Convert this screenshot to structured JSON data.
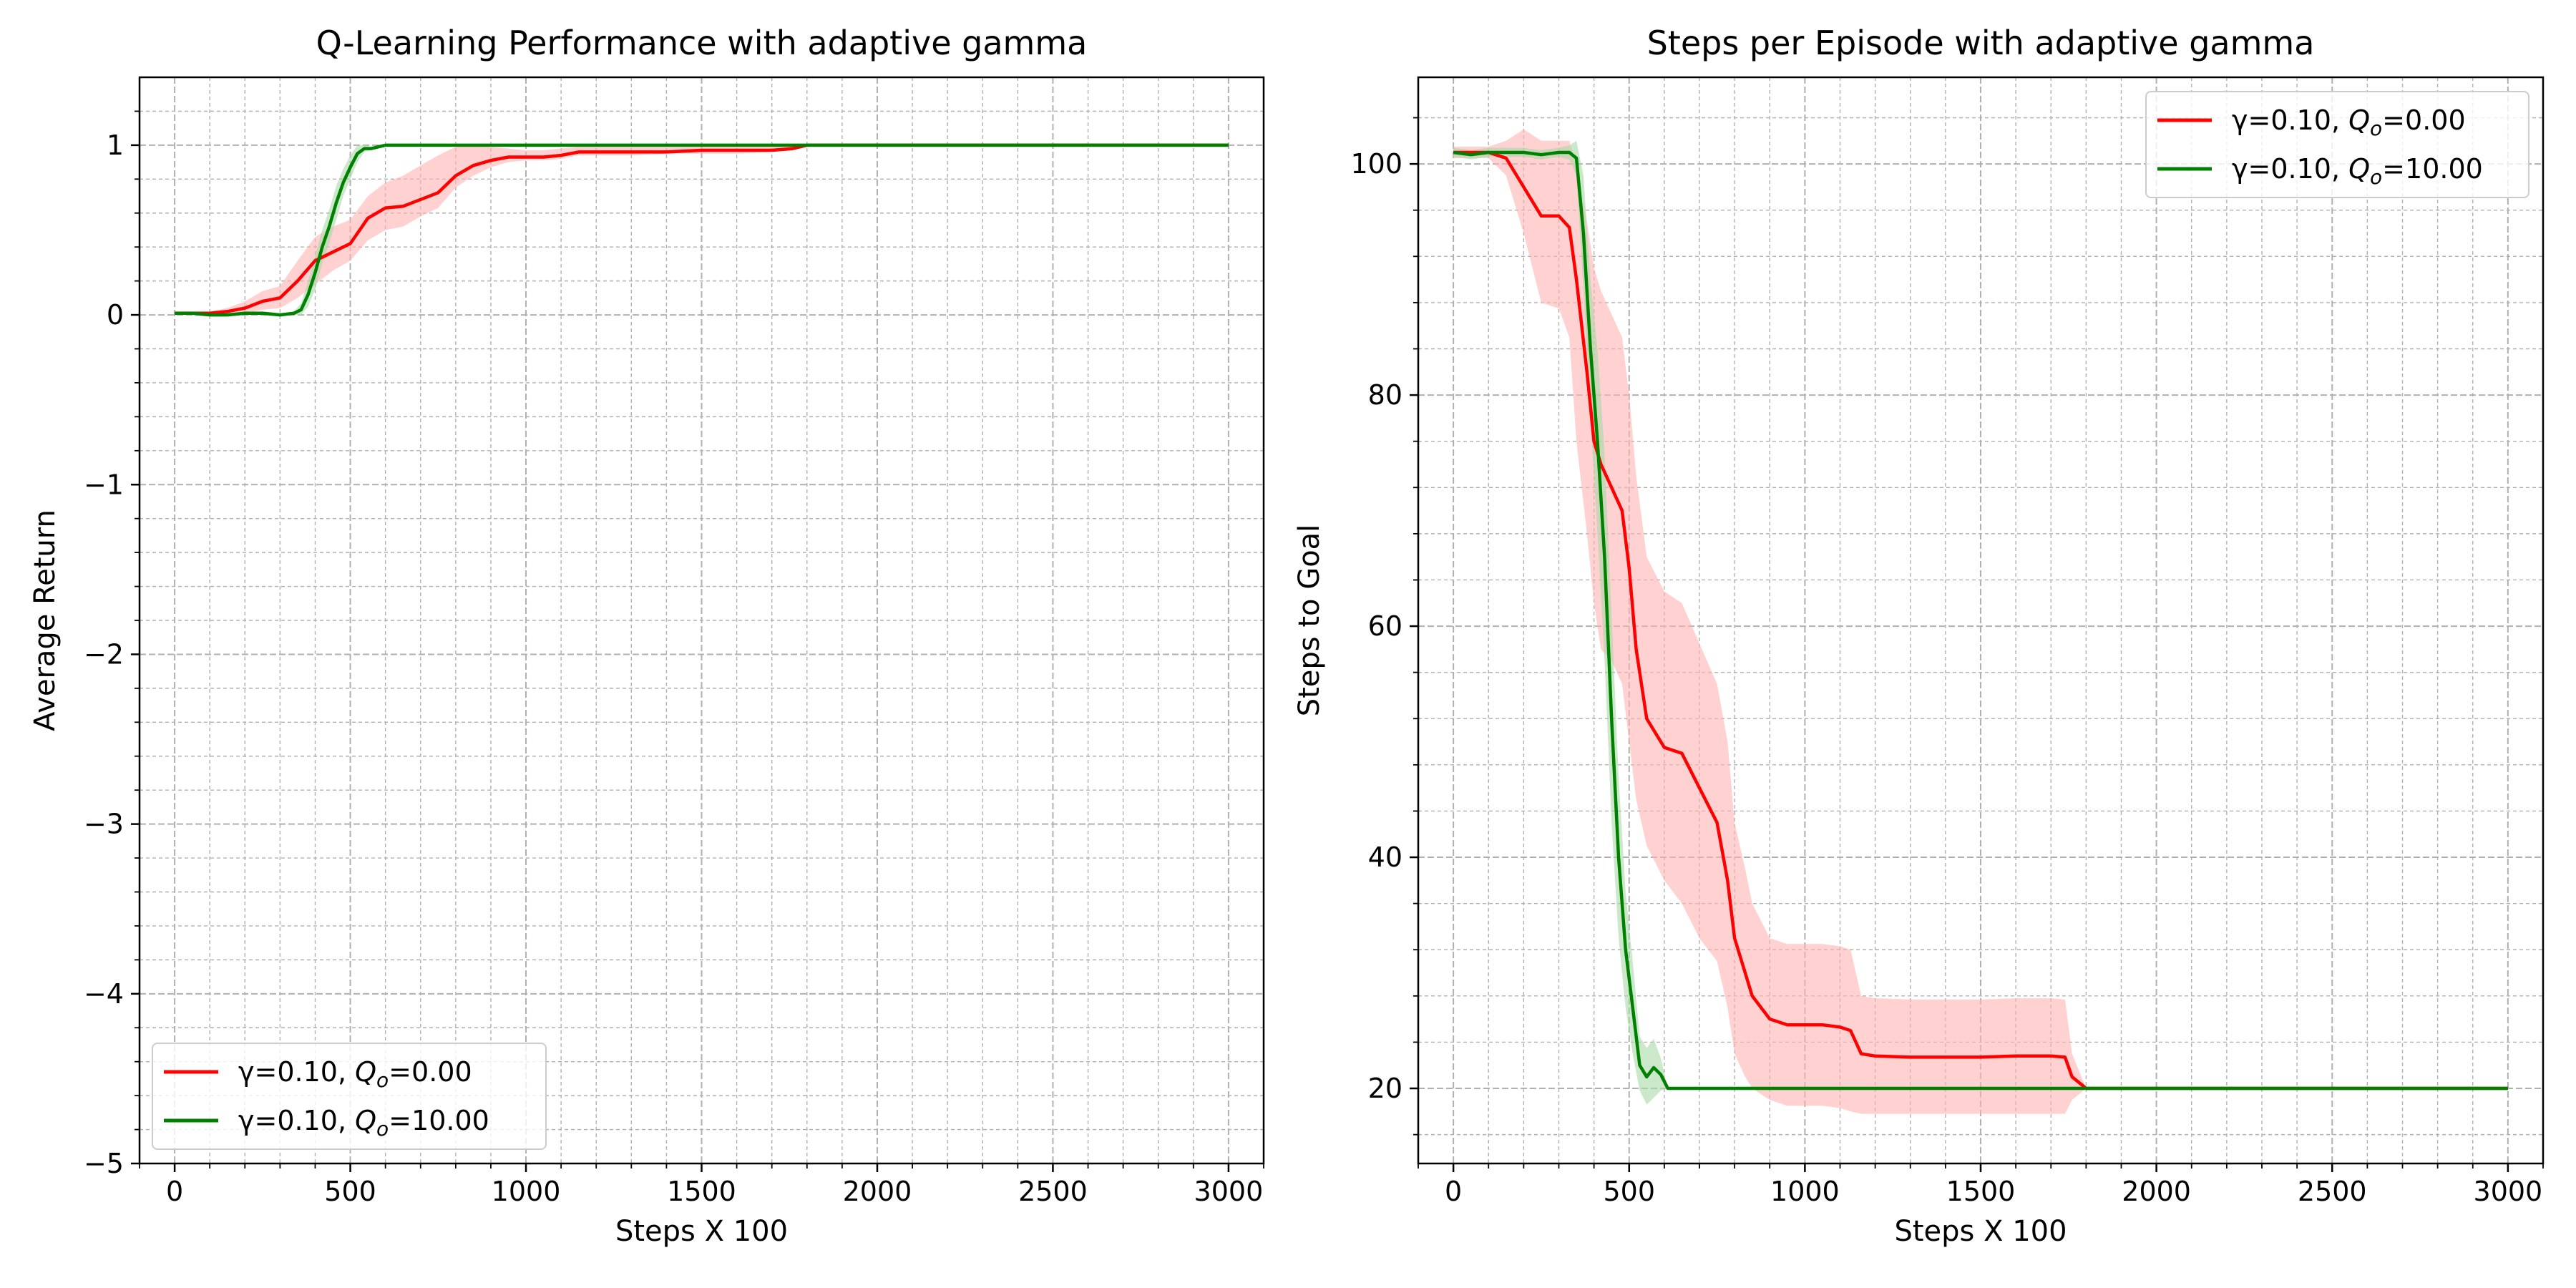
{
  "chart_data": [
    {
      "type": "line",
      "title": "Q-Learning Performance with adaptive gamma",
      "xlabel": "Steps X 100",
      "ylabel": "Average Return",
      "xlim": [
        -100,
        3100
      ],
      "ylim": [
        -5,
        1.4
      ],
      "xticks": [
        0,
        500,
        1000,
        1500,
        2000,
        2500,
        3000
      ],
      "xtick_labels": [
        "0",
        "500",
        "1000",
        "1500",
        "2000",
        "2500",
        "3000"
      ],
      "yticks": [
        1,
        0,
        -1,
        -2,
        -3,
        -4,
        -5
      ],
      "ytick_labels": [
        "1",
        "0",
        "−1",
        "−2",
        "−3",
        "−4",
        "−5"
      ],
      "grid": true,
      "minor_grid": true,
      "legend_position": "lower-left",
      "series": [
        {
          "name": "γ=0.10, Q_o=0.00",
          "legend_prefix": "γ=0.10, ",
          "legend_q": "Q",
          "legend_sub": "o",
          "legend_value": "=0.00",
          "color": "#ff0000",
          "band_color": "#ffb3b3",
          "x": [
            0,
            50,
            100,
            150,
            200,
            250,
            300,
            350,
            400,
            450,
            500,
            550,
            600,
            650,
            700,
            750,
            800,
            850,
            900,
            950,
            1000,
            1050,
            1100,
            1150,
            1200,
            1300,
            1400,
            1500,
            1600,
            1700,
            1760,
            1800,
            2000,
            2500,
            3000
          ],
          "y": [
            0.01,
            0.01,
            0.01,
            0.02,
            0.04,
            0.08,
            0.1,
            0.2,
            0.32,
            0.37,
            0.42,
            0.57,
            0.63,
            0.64,
            0.68,
            0.72,
            0.82,
            0.88,
            0.91,
            0.93,
            0.93,
            0.93,
            0.94,
            0.96,
            0.96,
            0.96,
            0.96,
            0.97,
            0.97,
            0.97,
            0.98,
            1.0,
            1.0,
            1.0,
            1.0
          ],
          "y_low": [
            0.0,
            0.0,
            0.0,
            0.0,
            0.01,
            0.03,
            0.04,
            0.1,
            0.18,
            0.26,
            0.32,
            0.44,
            0.5,
            0.52,
            0.58,
            0.63,
            0.75,
            0.82,
            0.87,
            0.9,
            0.91,
            0.91,
            0.92,
            0.94,
            0.94,
            0.94,
            0.95,
            0.95,
            0.95,
            0.96,
            0.97,
            1.0,
            1.0,
            1.0,
            1.0
          ],
          "y_high": [
            0.02,
            0.02,
            0.02,
            0.04,
            0.08,
            0.14,
            0.17,
            0.32,
            0.46,
            0.52,
            0.56,
            0.7,
            0.78,
            0.82,
            0.88,
            0.94,
            0.99,
            1.0,
            0.99,
            0.98,
            0.97,
            0.97,
            0.98,
            0.99,
            0.99,
            0.99,
            0.99,
            0.99,
            0.99,
            0.99,
            0.99,
            1.0,
            1.0,
            1.0,
            1.0
          ]
        },
        {
          "name": "γ=0.10, Q_o=10.00",
          "legend_prefix": "γ=0.10, ",
          "legend_q": "Q",
          "legend_sub": "o",
          "legend_value": "=10.00",
          "color": "#008000",
          "band_color": "#a8d8a8",
          "x": [
            0,
            50,
            100,
            150,
            200,
            250,
            300,
            340,
            360,
            380,
            400,
            420,
            440,
            460,
            480,
            500,
            520,
            540,
            560,
            580,
            600,
            800,
            1000,
            1500,
            2000,
            2500,
            3000
          ],
          "y": [
            0.01,
            0.01,
            0.0,
            0.0,
            0.01,
            0.01,
            0.0,
            0.01,
            0.03,
            0.12,
            0.25,
            0.4,
            0.52,
            0.66,
            0.78,
            0.87,
            0.95,
            0.98,
            0.98,
            0.99,
            1.0,
            1.0,
            1.0,
            1.0,
            1.0,
            1.0,
            1.0
          ],
          "y_low": [
            0.0,
            0.0,
            0.0,
            0.0,
            0.0,
            0.0,
            0.0,
            0.0,
            0.0,
            0.05,
            0.15,
            0.3,
            0.42,
            0.56,
            0.7,
            0.8,
            0.9,
            0.96,
            0.97,
            0.98,
            1.0,
            1.0,
            1.0,
            1.0,
            1.0,
            1.0,
            1.0
          ],
          "y_high": [
            0.02,
            0.02,
            0.01,
            0.01,
            0.02,
            0.02,
            0.01,
            0.02,
            0.07,
            0.2,
            0.35,
            0.5,
            0.62,
            0.76,
            0.86,
            0.94,
            1.0,
            1.0,
            0.99,
            1.0,
            1.0,
            1.0,
            1.0,
            1.0,
            1.0,
            1.0,
            1.0
          ]
        }
      ]
    },
    {
      "type": "line",
      "title": "Steps per Episode with adaptive gamma",
      "xlabel": "Steps X 100",
      "ylabel": "Steps to Goal",
      "xlim": [
        -100,
        3100
      ],
      "ylim": [
        13.5,
        107.5
      ],
      "xticks": [
        0,
        500,
        1000,
        1500,
        2000,
        2500,
        3000
      ],
      "xtick_labels": [
        "0",
        "500",
        "1000",
        "1500",
        "2000",
        "2500",
        "3000"
      ],
      "yticks": [
        100,
        80,
        60,
        40,
        20
      ],
      "ytick_labels": [
        "100",
        "80",
        "60",
        "40",
        "20"
      ],
      "grid": true,
      "minor_grid": true,
      "legend_position": "top-right",
      "series": [
        {
          "name": "γ=0.10, Q_o=0.00",
          "legend_prefix": "γ=0.10, ",
          "legend_q": "Q",
          "legend_sub": "o",
          "legend_value": "=0.00",
          "color": "#ff0000",
          "band_color": "#ffb3b3",
          "x": [
            0,
            100,
            150,
            200,
            250,
            300,
            330,
            350,
            380,
            400,
            420,
            450,
            480,
            500,
            520,
            550,
            600,
            650,
            700,
            750,
            780,
            800,
            830,
            850,
            900,
            950,
            1000,
            1050,
            1100,
            1130,
            1160,
            1200,
            1300,
            1400,
            1500,
            1600,
            1700,
            1740,
            1760,
            1800,
            2000,
            2500,
            3000
          ],
          "y": [
            101,
            101,
            100.5,
            98,
            95.5,
            95.5,
            94.5,
            90,
            82,
            76,
            74,
            72,
            70,
            65,
            58,
            52,
            49.5,
            49,
            46,
            43,
            38,
            33,
            30,
            28,
            26,
            25.5,
            25.5,
            25.5,
            25.3,
            25,
            23,
            22.8,
            22.7,
            22.7,
            22.7,
            22.8,
            22.8,
            22.7,
            21,
            20,
            20,
            20,
            20
          ],
          "y_low": [
            100.5,
            100.5,
            99,
            94,
            88,
            87.5,
            85,
            76,
            68,
            62,
            58,
            57,
            55,
            50,
            45,
            41,
            38,
            36,
            33,
            31,
            27,
            23,
            21,
            20,
            19,
            18.5,
            18.5,
            18.5,
            18.3,
            18,
            17.8,
            17.8,
            17.8,
            17.8,
            17.8,
            17.8,
            17.8,
            17.8,
            19,
            20,
            20,
            20,
            20
          ],
          "y_high": [
            101.5,
            101.5,
            102,
            103,
            102,
            102,
            102,
            100,
            95,
            91,
            89,
            87,
            85,
            80,
            73,
            66,
            63,
            62,
            58.5,
            55,
            50,
            43,
            39,
            36,
            33,
            32.5,
            32.5,
            32.5,
            32.3,
            32,
            28,
            27.8,
            27.7,
            27.7,
            27.7,
            27.8,
            27.8,
            27.7,
            23,
            20,
            20,
            20,
            20
          ]
        },
        {
          "name": "γ=0.10, Q_o=10.00",
          "legend_prefix": "γ=0.10, ",
          "legend_q": "Q",
          "legend_sub": "o",
          "legend_value": "=10.00",
          "color": "#008000",
          "band_color": "#a8d8a8",
          "x": [
            0,
            50,
            100,
            150,
            200,
            250,
            300,
            330,
            350,
            370,
            390,
            410,
            430,
            450,
            470,
            490,
            510,
            530,
            550,
            570,
            590,
            610,
            800,
            1000,
            1500,
            2000,
            2500,
            3000
          ],
          "y": [
            101,
            100.8,
            101,
            101,
            101,
            100.8,
            101,
            101,
            100.5,
            94,
            84,
            76,
            66,
            52,
            40,
            32,
            27,
            22,
            21,
            21.8,
            21.2,
            20,
            20,
            20,
            20,
            20,
            20,
            20
          ],
          "y_low": [
            100.6,
            100.4,
            100.6,
            100.6,
            100.6,
            100.4,
            100.6,
            100.4,
            99,
            89,
            78,
            68,
            57,
            43,
            33,
            27,
            23,
            19.8,
            18.6,
            19.2,
            19.8,
            20,
            20,
            20,
            20,
            20,
            20,
            20
          ],
          "y_high": [
            101.4,
            101.2,
            101.4,
            101.4,
            101.4,
            101.2,
            101.4,
            101.6,
            102,
            99,
            90,
            84,
            75,
            61,
            47,
            37,
            31,
            24.5,
            23.5,
            24.3,
            22.6,
            20,
            20,
            20,
            20,
            20,
            20,
            20
          ]
        }
      ]
    }
  ]
}
